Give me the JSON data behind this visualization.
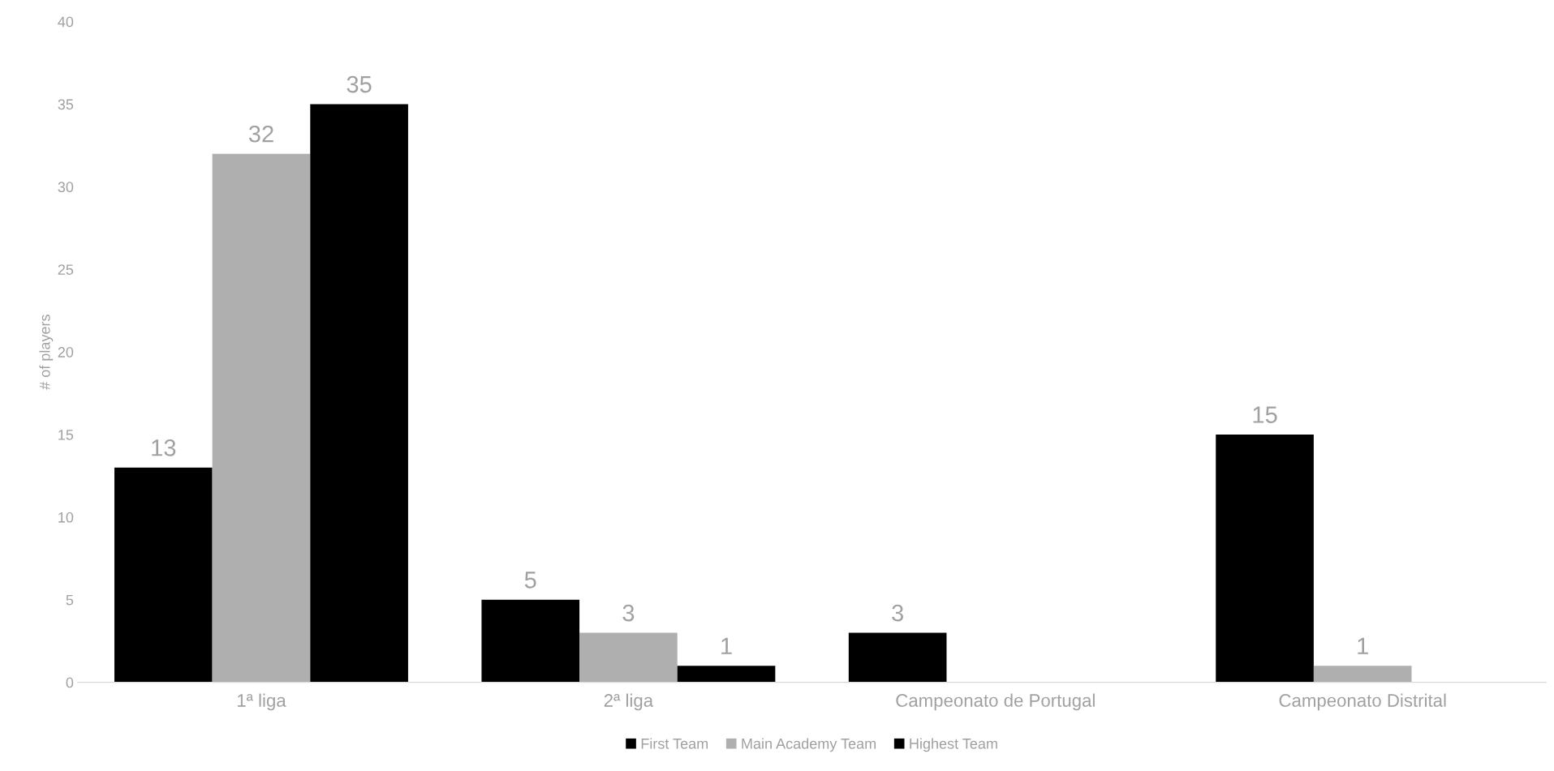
{
  "chart_data": {
    "type": "bar",
    "categories": [
      "1ª liga",
      "2ª liga",
      "Campeonato de Portugal",
      "Campeonato Distrital"
    ],
    "series": [
      {
        "name": "First Team",
        "color": "#000000",
        "values": [
          13,
          5,
          3,
          15
        ]
      },
      {
        "name": "Main Academy Team",
        "color": "#afafb0",
        "values": [
          32,
          3,
          null,
          1
        ]
      },
      {
        "name": "Highest Team",
        "color": "#000000",
        "values": [
          35,
          1,
          null,
          null
        ]
      }
    ],
    "ylabel": "# of players",
    "ylim": [
      0,
      40
    ],
    "yticks": [
      0,
      5,
      10,
      15,
      20,
      25,
      30,
      35,
      40
    ],
    "data_labels": true,
    "legend": "bottom",
    "grid": false
  }
}
